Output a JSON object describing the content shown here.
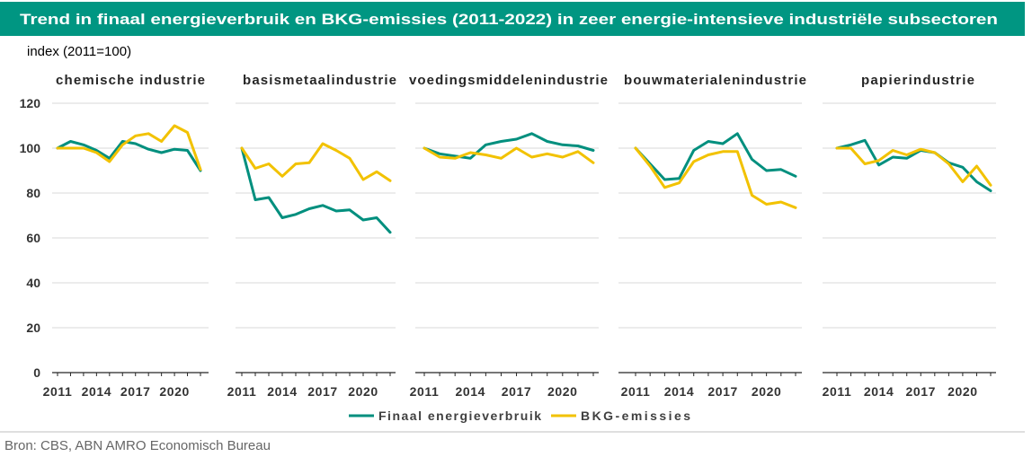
{
  "title": "Trend in finaal energieverbruik en BKG-emissies (2011-2022) in zeer energie-intensieve industriële subsectoren",
  "colors": {
    "title_bar": "#009682",
    "title_text": "#ffffff",
    "gridline": "#d9d9d9",
    "axis": "#262626",
    "divider": "#bfbfbf"
  },
  "y_axis": {
    "label": "index (2011=100)",
    "tick_labels": [
      "0",
      "20",
      "40",
      "60",
      "80",
      "100",
      "120"
    ]
  },
  "legend_position": "bottom",
  "source": "Bron: CBS, ABN AMRO Economisch Bureau",
  "chart_data": [
    {
      "type": "line",
      "title": "chemische industrie",
      "x": [
        2011,
        2012,
        2013,
        2014,
        2015,
        2016,
        2017,
        2018,
        2019,
        2020,
        2021,
        2022
      ],
      "x_tick_labels": [
        "2011",
        "2014",
        "2017",
        "2020"
      ],
      "ylim": [
        0,
        120
      ],
      "grid": true,
      "series": [
        {
          "name": "Finaal energieverbruik",
          "color": "#008f7e",
          "values": [
            100,
            103,
            101.5,
            99,
            95.5,
            103,
            102,
            99.5,
            98,
            99.5,
            99,
            90
          ]
        },
        {
          "name": "BKG-emissies",
          "color": "#f2c200",
          "values": [
            100,
            100,
            100,
            98,
            94,
            101.5,
            105.5,
            106.5,
            103,
            110,
            107,
            90.5
          ]
        }
      ]
    },
    {
      "type": "line",
      "title": "basismetaalindustrie",
      "x": [
        2011,
        2012,
        2013,
        2014,
        2015,
        2016,
        2017,
        2018,
        2019,
        2020,
        2021,
        2022
      ],
      "x_tick_labels": [
        "2011",
        "2014",
        "2017",
        "2020"
      ],
      "ylim": [
        0,
        120
      ],
      "grid": true,
      "series": [
        {
          "name": "Finaal energieverbruik",
          "color": "#008f7e",
          "values": [
            100,
            77,
            78,
            69,
            70.5,
            73,
            74.5,
            72,
            72.5,
            68,
            69,
            62.5
          ]
        },
        {
          "name": "BKG-emissies",
          "color": "#f2c200",
          "values": [
            100,
            91,
            93,
            87.5,
            93,
            93.5,
            102,
            99,
            95.5,
            86,
            89.5,
            85.5
          ]
        }
      ]
    },
    {
      "type": "line",
      "title": "voedingsmiddelenindustrie",
      "x": [
        2011,
        2012,
        2013,
        2014,
        2015,
        2016,
        2017,
        2018,
        2019,
        2020,
        2021,
        2022
      ],
      "x_tick_labels": [
        "2011",
        "2014",
        "2017",
        "2020"
      ],
      "ylim": [
        0,
        120
      ],
      "grid": true,
      "series": [
        {
          "name": "Finaal energieverbruik",
          "color": "#008f7e",
          "values": [
            100,
            97.5,
            96.5,
            95.5,
            101.5,
            103,
            104,
            106.5,
            103,
            101.5,
            101,
            99
          ]
        },
        {
          "name": "BKG-emissies",
          "color": "#f2c200",
          "values": [
            100,
            96,
            95.5,
            98,
            97,
            95.5,
            100,
            96,
            97.5,
            96,
            98.5,
            93.5
          ]
        }
      ]
    },
    {
      "type": "line",
      "title": "bouwmaterialenindustrie",
      "x": [
        2011,
        2012,
        2013,
        2014,
        2015,
        2016,
        2017,
        2018,
        2019,
        2020,
        2021,
        2022
      ],
      "x_tick_labels": [
        "2011",
        "2014",
        "2017",
        "2020"
      ],
      "ylim": [
        0,
        120
      ],
      "grid": true,
      "series": [
        {
          "name": "Finaal energieverbruik",
          "color": "#008f7e",
          "values": [
            100,
            93,
            86,
            86.5,
            99,
            103,
            102,
            106.5,
            95,
            90,
            90.5,
            87.5
          ]
        },
        {
          "name": "BKG-emissies",
          "color": "#f2c200",
          "values": [
            100,
            92,
            82.5,
            84.5,
            94,
            97,
            98.5,
            98.5,
            79,
            75,
            76,
            73.5
          ]
        }
      ]
    },
    {
      "type": "line",
      "title": "papierindustrie",
      "x": [
        2011,
        2012,
        2013,
        2014,
        2015,
        2016,
        2017,
        2018,
        2019,
        2020,
        2021,
        2022
      ],
      "x_tick_labels": [
        "2011",
        "2014",
        "2017",
        "2020"
      ],
      "ylim": [
        0,
        120
      ],
      "grid": true,
      "series": [
        {
          "name": "Finaal energieverbruik",
          "color": "#008f7e",
          "values": [
            100,
            101.5,
            103.5,
            92.5,
            96,
            95.5,
            99,
            98,
            93.5,
            91.5,
            85,
            81
          ]
        },
        {
          "name": "BKG-emissies",
          "color": "#f2c200",
          "values": [
            100,
            100,
            93,
            94.5,
            99,
            97,
            99.5,
            98,
            93,
            85,
            92,
            83.5
          ]
        }
      ]
    }
  ]
}
